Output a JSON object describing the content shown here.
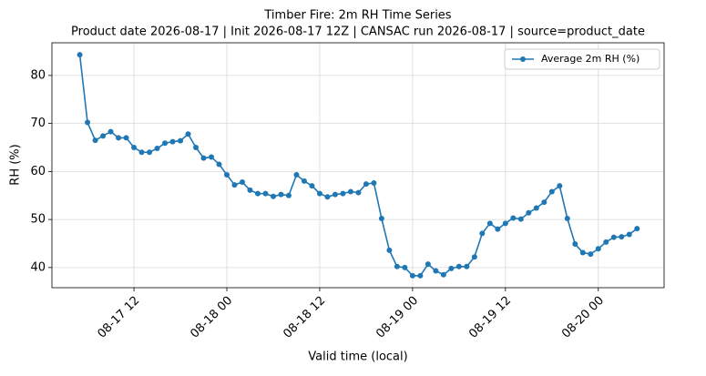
{
  "chart_data": {
    "type": "line",
    "title": "Timber Fire: 2m RH Time Series",
    "subtitle": "Product date 2026-08-17 | Init 2026-08-17 12Z | CANSAC run 2026-08-17 | source=product_date",
    "x_label": "Valid time (local)",
    "y_label": "RH (%)",
    "x": [
      "08-17 05",
      "08-17 06",
      "08-17 07",
      "08-17 08",
      "08-17 09",
      "08-17 10",
      "08-17 11",
      "08-17 12",
      "08-17 13",
      "08-17 14",
      "08-17 15",
      "08-17 16",
      "08-17 17",
      "08-17 18",
      "08-17 19",
      "08-17 20",
      "08-17 21",
      "08-17 22",
      "08-17 23",
      "08-18 00",
      "08-18 01",
      "08-18 02",
      "08-18 03",
      "08-18 04",
      "08-18 05",
      "08-18 06",
      "08-18 07",
      "08-18 08",
      "08-18 09",
      "08-18 10",
      "08-18 11",
      "08-18 12",
      "08-18 13",
      "08-18 14",
      "08-18 15",
      "08-18 16",
      "08-18 17",
      "08-18 18",
      "08-18 19",
      "08-18 20",
      "08-18 21",
      "08-18 22",
      "08-18 23",
      "08-19 00",
      "08-19 01",
      "08-19 02",
      "08-19 03",
      "08-19 04",
      "08-19 05",
      "08-19 06",
      "08-19 07",
      "08-19 08",
      "08-19 09",
      "08-19 10",
      "08-19 11",
      "08-19 12",
      "08-19 13",
      "08-19 14",
      "08-19 15",
      "08-19 16",
      "08-19 17",
      "08-19 18",
      "08-19 19",
      "08-19 20",
      "08-19 21",
      "08-19 22",
      "08-19 23",
      "08-20 00",
      "08-20 01",
      "08-20 02",
      "08-20 03",
      "08-20 04",
      "08-20 05"
    ],
    "series": [
      {
        "name": "Average 2m RH (%)",
        "color": "#1f77b4",
        "values": [
          84.3,
          70.2,
          66.5,
          67.4,
          68.3,
          67.0,
          67.0,
          65.0,
          64.0,
          64.0,
          64.8,
          65.9,
          66.2,
          66.4,
          67.8,
          65.0,
          62.8,
          63.0,
          61.5,
          59.3,
          57.2,
          57.8,
          56.1,
          55.4,
          55.4,
          54.8,
          55.2,
          55.0,
          59.3,
          58.0,
          57.0,
          55.4,
          54.7,
          55.2,
          55.4,
          55.8,
          55.6,
          57.4,
          57.6,
          50.2,
          43.6,
          40.2,
          40.0,
          38.3,
          38.3,
          40.7,
          39.3,
          38.5,
          39.8,
          40.2,
          40.2,
          42.2,
          47.1,
          49.2,
          48.0,
          49.2,
          50.3,
          50.1,
          51.4,
          52.4,
          53.6,
          55.8,
          57.0,
          50.2,
          44.9,
          43.1,
          42.8,
          43.9,
          45.3,
          46.3,
          46.4,
          46.9,
          48.1
        ]
      }
    ],
    "xlim": [
      "08-17 01:24",
      "08-20 08:30"
    ],
    "xticks": [
      "08-17 12",
      "08-18 00",
      "08-18 12",
      "08-19 00",
      "08-19 12",
      "08-20 00"
    ],
    "ylim": [
      35.8,
      86.8
    ],
    "yticks": [
      40,
      50,
      60,
      70,
      80
    ],
    "grid": true,
    "legend": "upper right"
  }
}
